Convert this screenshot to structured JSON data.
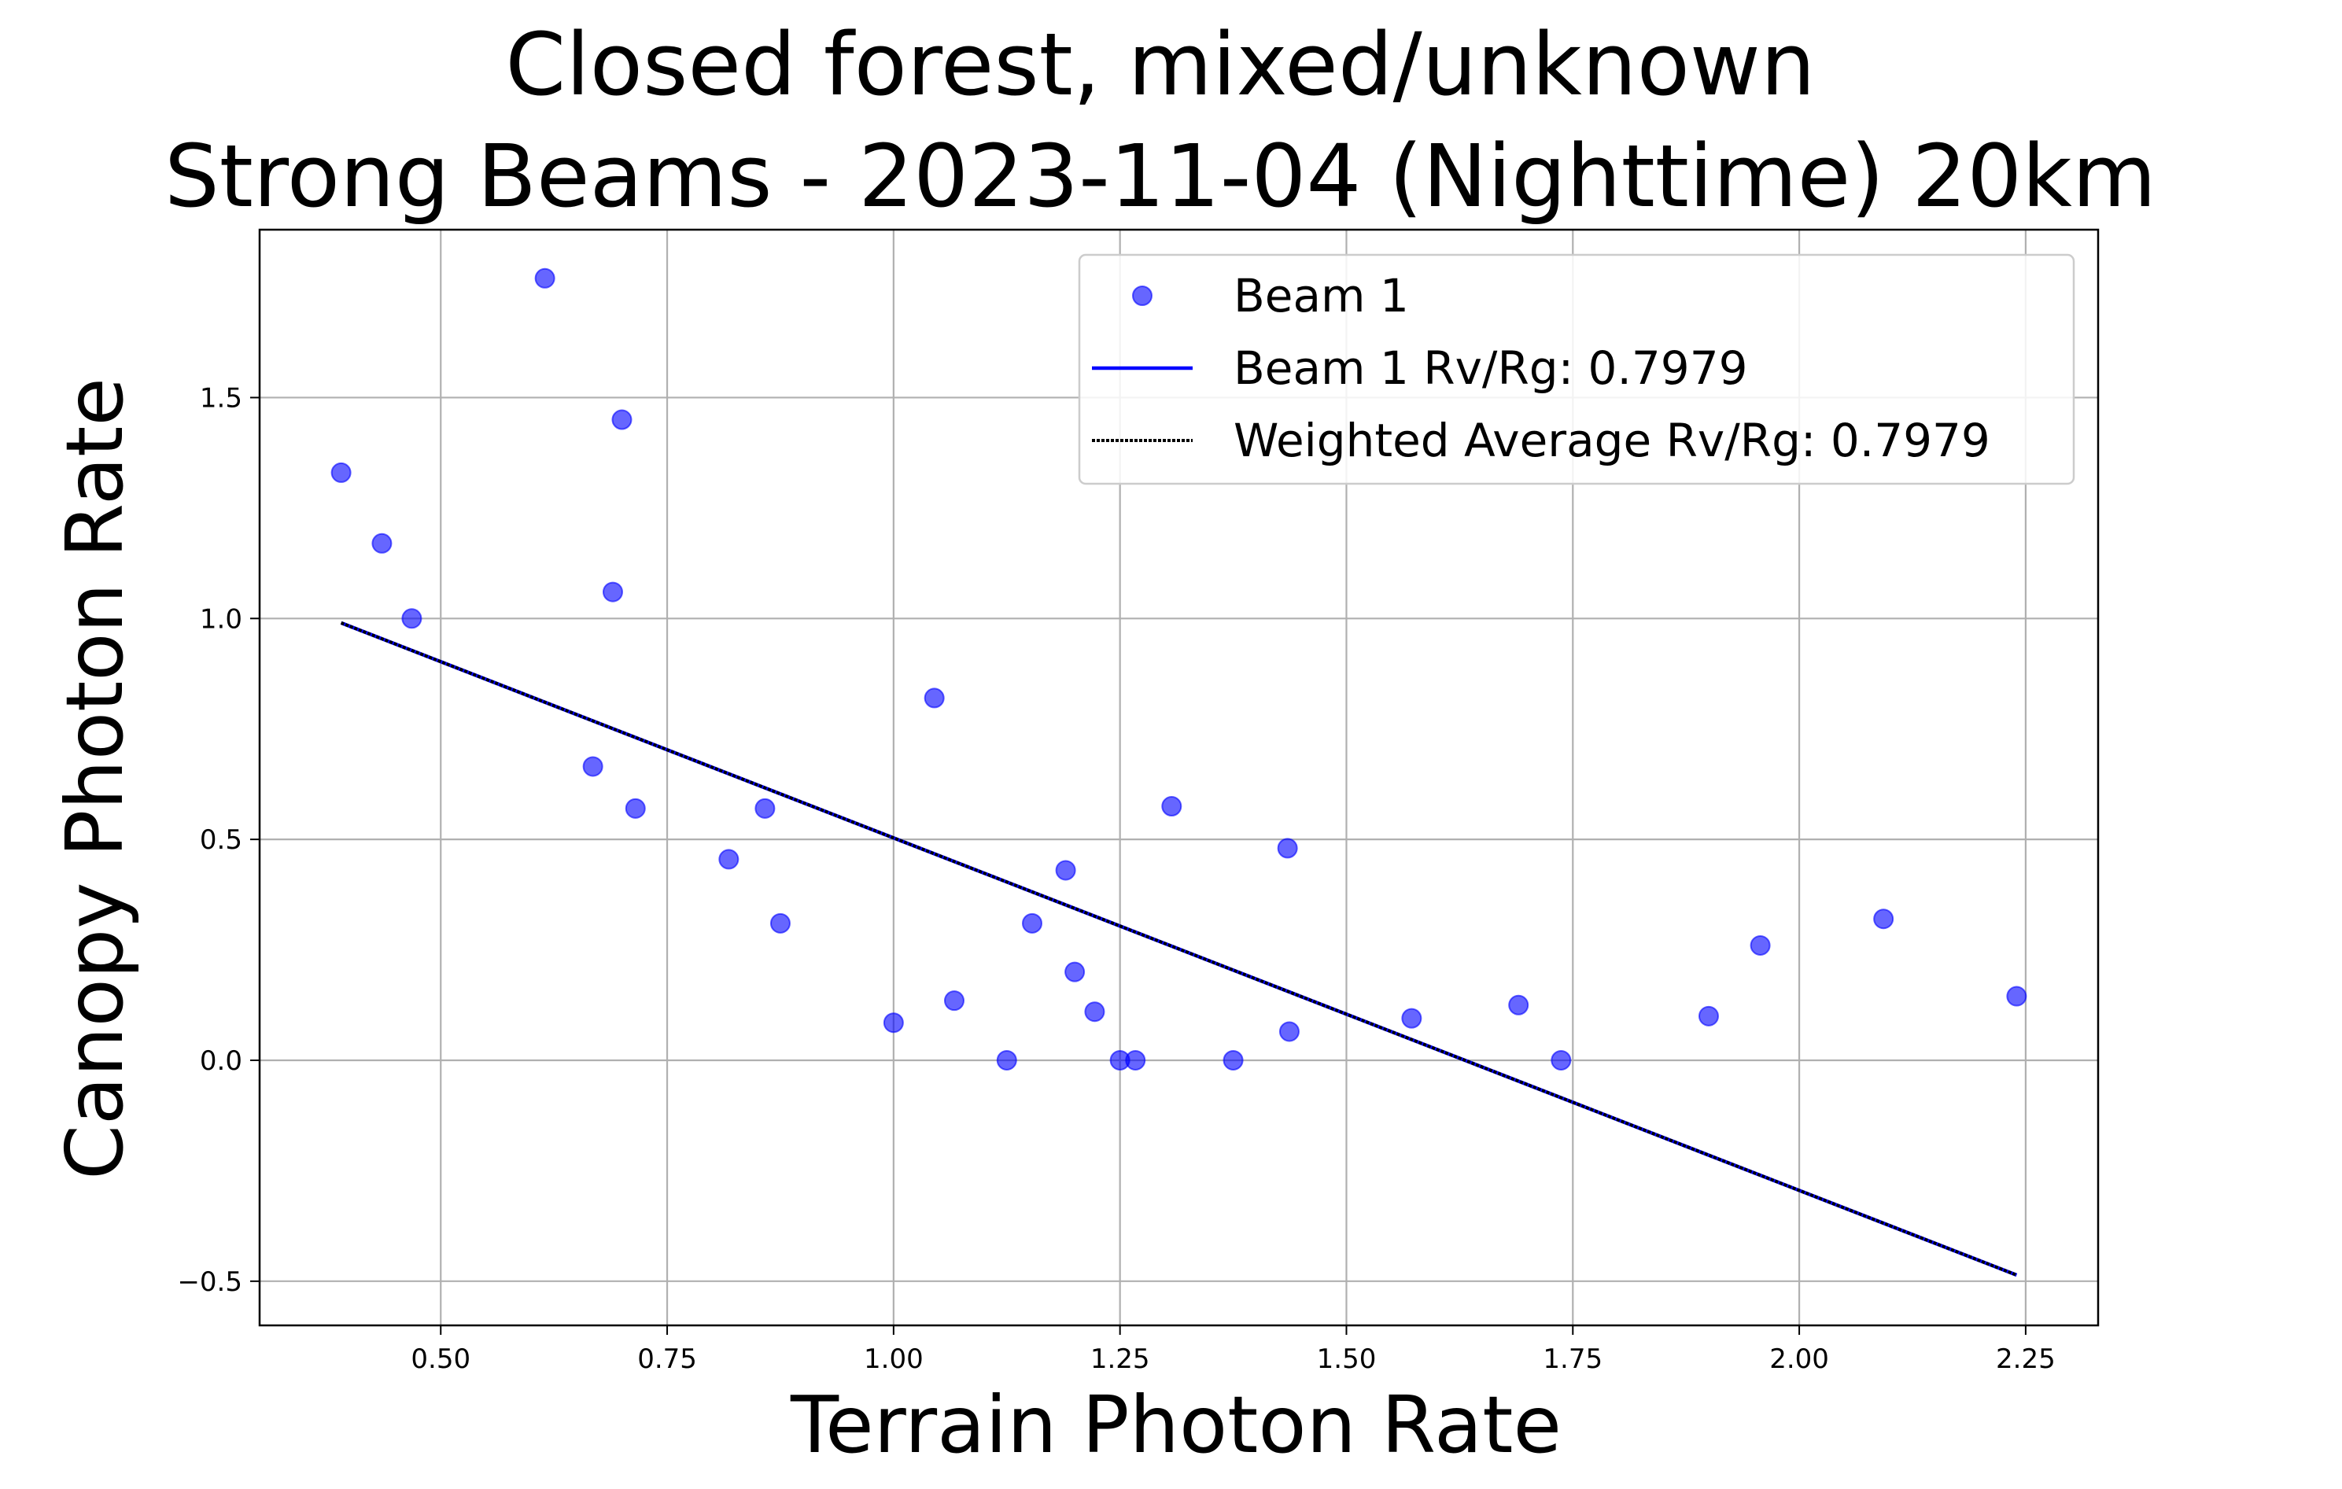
{
  "chart_data": {
    "type": "scatter",
    "title": "Closed forest, mixed/unknown",
    "subtitle": "Strong Beams - 2023-11-04 (Nighttime) 20km",
    "xlabel": "Terrain Photon Rate",
    "ylabel": "Canopy Photon Rate",
    "xlim": [
      0.3,
      2.33
    ],
    "ylim": [
      -0.6,
      1.88
    ],
    "xticks": [
      0.5,
      0.75,
      1.0,
      1.25,
      1.5,
      1.75,
      2.0,
      2.25
    ],
    "xtick_labels": [
      "0.50",
      "0.75",
      "1.00",
      "1.25",
      "1.50",
      "1.75",
      "2.00",
      "2.25"
    ],
    "yticks": [
      -0.5,
      0.0,
      0.5,
      1.0,
      1.5
    ],
    "ytick_labels": [
      "−0.5",
      "0.0",
      "0.5",
      "1.0",
      "1.5"
    ],
    "grid": true,
    "legend_position": "top-right",
    "series": [
      {
        "name": "Beam 1",
        "kind": "scatter",
        "color": "#0000ff",
        "points": [
          [
            0.39,
            1.33
          ],
          [
            0.435,
            1.17
          ],
          [
            0.468,
            1.0
          ],
          [
            0.615,
            1.77
          ],
          [
            0.668,
            0.665
          ],
          [
            0.69,
            1.06
          ],
          [
            0.7,
            1.45
          ],
          [
            0.715,
            0.57
          ],
          [
            0.818,
            0.455
          ],
          [
            0.858,
            0.57
          ],
          [
            0.875,
            0.31
          ],
          [
            1.0,
            0.085
          ],
          [
            1.045,
            0.82
          ],
          [
            1.067,
            0.135
          ],
          [
            1.125,
            0.0
          ],
          [
            1.153,
            0.31
          ],
          [
            1.19,
            0.43
          ],
          [
            1.2,
            0.2
          ],
          [
            1.222,
            0.11
          ],
          [
            1.25,
            0.0
          ],
          [
            1.267,
            0.0
          ],
          [
            1.307,
            0.575
          ],
          [
            1.375,
            0.0
          ],
          [
            1.435,
            0.48
          ],
          [
            1.437,
            0.065
          ],
          [
            1.572,
            0.095
          ],
          [
            1.69,
            0.125
          ],
          [
            1.737,
            0.0
          ],
          [
            1.9,
            0.1
          ],
          [
            1.957,
            0.26
          ],
          [
            2.093,
            0.32
          ],
          [
            2.24,
            0.145
          ]
        ]
      },
      {
        "name": "Beam 1 Rv/Rg: 0.7979",
        "kind": "line",
        "style": "solid",
        "color": "#0000ff",
        "x": [
          0.39,
          2.24
        ],
        "y": [
          0.99,
          -0.486
        ]
      },
      {
        "name": "Weighted Average Rv/Rg: 0.7979",
        "kind": "line",
        "style": "dotted",
        "color": "#000000",
        "x": [
          0.39,
          2.24
        ],
        "y": [
          0.99,
          -0.486
        ]
      }
    ]
  }
}
